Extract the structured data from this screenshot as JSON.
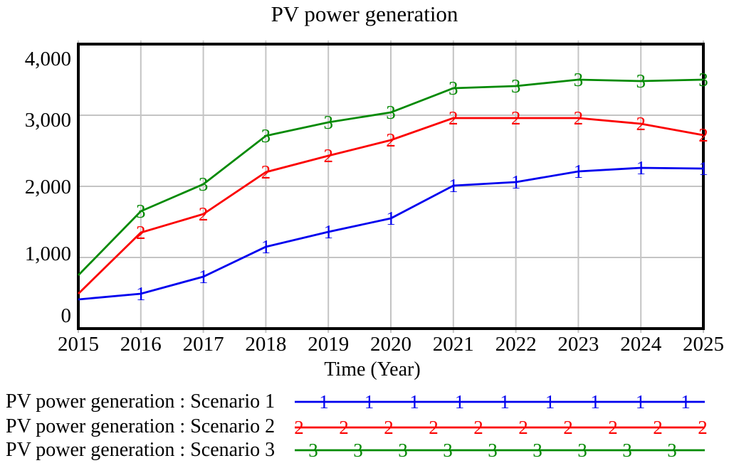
{
  "title": "PV power generation",
  "x_axis_title": "Time (Year)",
  "y_tick_labels": [
    "4,000",
    "3,000",
    "2,000",
    "1,000",
    "0"
  ],
  "x_tick_labels": [
    "2015",
    "2016",
    "2017",
    "2018",
    "2019",
    "2020",
    "2021",
    "2022",
    "2023",
    "2024",
    "2025"
  ],
  "colors": {
    "scenario1": "#0000ee",
    "scenario2": "#fb0000",
    "scenario3": "#048a04",
    "gridline": "#c4c4c4",
    "frame": "#000000"
  },
  "chart_data": {
    "type": "line",
    "title": "PV power generation",
    "xlabel": "Time (Year)",
    "ylabel": "",
    "ylim": [
      0,
      4000
    ],
    "yticks": [
      0,
      1000,
      2000,
      3000,
      4000
    ],
    "grid": true,
    "legend_position": "bottom-left",
    "categories": [
      2015,
      2016,
      2017,
      2018,
      2019,
      2020,
      2021,
      2022,
      2023,
      2024,
      2025
    ],
    "series": [
      {
        "name": "PV power generation : Scenario 1",
        "marker": "1",
        "color": "#0000ee",
        "values": [
          410,
          490,
          730,
          1150,
          1360,
          1550,
          2010,
          2060,
          2210,
          2260,
          2250
        ]
      },
      {
        "name": "PV power generation : Scenario 2",
        "marker": "2",
        "color": "#fb0000",
        "values": [
          490,
          1350,
          1610,
          2200,
          2430,
          2650,
          2960,
          2960,
          2960,
          2880,
          2720
        ]
      },
      {
        "name": "PV power generation : Scenario 3",
        "marker": "3",
        "color": "#048a04",
        "values": [
          750,
          1650,
          2030,
          2710,
          2900,
          3040,
          3380,
          3410,
          3500,
          3480,
          3500
        ]
      }
    ]
  }
}
